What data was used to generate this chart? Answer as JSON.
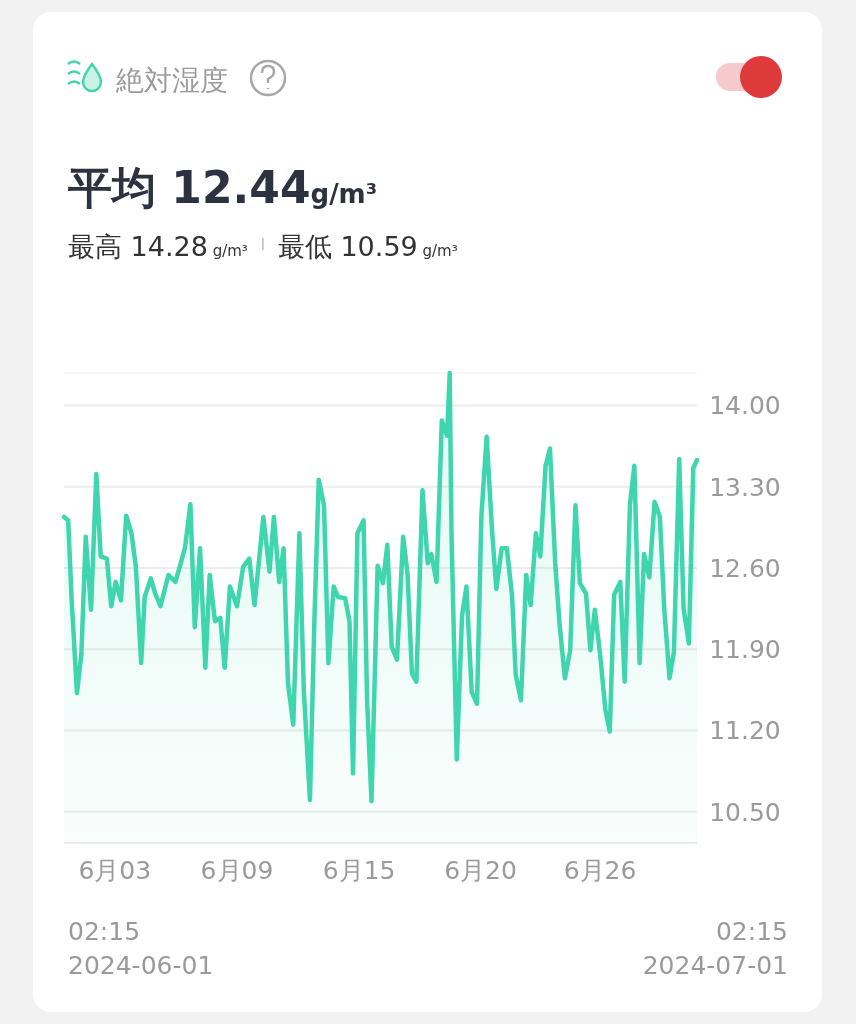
{
  "chart_data": {
    "type": "area",
    "title": "絶対湿度",
    "subtitle": "平均 12.44g/m³",
    "annotations": [
      "最高 14.28 g/m³",
      "最低 10.59 g/m³",
      "02:15\n2024-06-01",
      "02:15\n2024-07-01"
    ],
    "x": [
      "2024-06-01T02:15",
      "2024-06-01T07:00",
      "2024-06-01T11:00",
      "2024-06-01T17:00",
      "2024-06-01T22:00",
      "2024-06-02T03:00",
      "2024-06-02T09:00",
      "2024-06-02T15:00",
      "2024-06-02T20:00",
      "2024-06-03T03:00",
      "2024-06-03T08:00",
      "2024-06-03T13:00",
      "2024-06-03T19:00",
      "2024-06-04T01:00",
      "2024-06-04T07:00",
      "2024-06-04T12:00",
      "2024-06-04T18:00",
      "2024-06-04T22:00",
      "2024-06-05T05:00",
      "2024-06-05T10:00",
      "2024-06-05T16:00",
      "2024-06-06T01:00",
      "2024-06-06T09:00",
      "2024-06-06T15:00",
      "2024-06-06T20:00",
      "2024-06-07T02:00",
      "2024-06-07T07:00",
      "2024-06-07T13:00",
      "2024-06-07T19:00",
      "2024-06-08T00:00",
      "2024-06-08T06:00",
      "2024-06-08T12:00",
      "2024-06-08T17:00",
      "2024-06-08T23:00",
      "2024-06-09T07:00",
      "2024-06-09T14:00",
      "2024-06-09T21:00",
      "2024-06-10T03:00",
      "2024-06-10T13:00",
      "2024-06-10T20:00",
      "2024-06-11T01:00",
      "2024-06-11T07:00",
      "2024-06-11T12:00",
      "2024-06-11T17:00",
      "2024-06-11T23:00",
      "2024-06-12T06:00",
      "2024-06-12T11:00",
      "2024-06-12T18:00",
      "2024-06-12T23:00",
      "2024-06-13T04:00",
      "2024-06-13T10:00",
      "2024-06-13T15:00",
      "2024-06-13T21:00",
      "2024-06-14T02:00",
      "2024-06-14T10:00",
      "2024-06-14T15:00",
      "2024-06-14T19:00",
      "2024-06-15T00:00",
      "2024-06-15T07:00",
      "2024-06-15T11:00",
      "2024-06-15T16:00",
      "2024-06-15T23:00",
      "2024-06-16T05:00",
      "2024-06-16T10:00",
      "2024-06-16T15:00",
      "2024-06-16T21:00",
      "2024-06-17T04:00",
      "2024-06-17T09:00",
      "2024-06-17T14:00",
      "2024-06-17T19:00",
      "2024-06-18T02:00",
      "2024-06-18T08:00",
      "2024-06-18T12:00",
      "2024-06-18T18:00",
      "2024-06-19T00:00",
      "2024-06-19T06:00",
      "2024-06-19T09:00",
      "2024-06-19T11:00",
      "2024-06-19T17:00",
      "2024-06-19T23:00",
      "2024-06-20T04:00",
      "2024-06-20T10:00",
      "2024-06-20T16:00",
      "2024-06-20T21:00",
      "2024-06-21T03:00",
      "2024-06-21T09:00",
      "2024-06-21T14:00",
      "2024-06-21T20:00",
      "2024-06-22T02:00",
      "2024-06-22T08:00",
      "2024-06-22T12:00",
      "2024-06-22T18:00",
      "2024-06-23T00:00",
      "2024-06-23T05:00",
      "2024-06-23T11:00",
      "2024-06-23T16:00",
      "2024-06-23T22:00",
      "2024-06-24T03:00",
      "2024-06-24T09:00",
      "2024-06-24T14:00",
      "2024-06-24T20:00",
      "2024-06-25T02:00",
      "2024-06-25T08:00",
      "2024-06-25T13:00",
      "2024-06-25T20:00",
      "2024-06-26T01:00",
      "2024-06-26T06:00",
      "2024-06-26T12:00",
      "2024-06-26T18:00",
      "2024-06-26T23:00",
      "2024-06-27T04:00",
      "2024-06-27T11:00",
      "2024-06-27T16:00",
      "2024-06-27T22:00",
      "2024-06-28T03:00",
      "2024-06-28T09:00",
      "2024-06-28T14:00",
      "2024-06-28T20:00",
      "2024-06-29T02:00",
      "2024-06-29T08:00",
      "2024-06-29T13:00",
      "2024-06-29T19:00",
      "2024-06-30T00:00",
      "2024-06-30T06:00",
      "2024-06-30T11:00",
      "2024-06-30T17:00",
      "2024-06-30T22:00",
      "2024-07-01T02:15"
    ],
    "series": [
      {
        "color": "#3fd6ae",
        "values": [
          13.04,
          13.01,
          12.32,
          11.52,
          11.86,
          12.87,
          12.24,
          13.41,
          12.7,
          12.68,
          12.27,
          12.48,
          12.32,
          13.05,
          12.9,
          12.61,
          11.78,
          12.35,
          12.51,
          12.38,
          12.27,
          12.54,
          12.48,
          12.64,
          12.78,
          13.15,
          12.09,
          12.77,
          11.74,
          12.54,
          12.14,
          12.17,
          11.74,
          12.44,
          12.27,
          12.61,
          12.68,
          12.28,
          13.04,
          12.57,
          13.04,
          12.48,
          12.77,
          11.61,
          11.25,
          12.9,
          11.55,
          10.6,
          12.14,
          13.36,
          13.14,
          11.78,
          12.44,
          12.35,
          12.34,
          12.14,
          10.83,
          12.9,
          13.01,
          11.46,
          10.59,
          12.62,
          12.47,
          12.8,
          11.92,
          11.81,
          12.87,
          12.55,
          11.69,
          11.62,
          13.27,
          12.64,
          12.72,
          12.48,
          13.87,
          13.74,
          14.28,
          12.9,
          10.95,
          12.19,
          12.44,
          11.53,
          11.43,
          13.05,
          13.73,
          12.94,
          12.42,
          12.77,
          12.77,
          12.35,
          11.68,
          11.46,
          12.54,
          12.28,
          12.9,
          12.7,
          13.48,
          13.63,
          12.64,
          12.11,
          11.65,
          11.89,
          13.14,
          12.47,
          12.38,
          11.89,
          12.24,
          11.86,
          11.38,
          11.19,
          12.37,
          12.48,
          11.62,
          13.15,
          13.48,
          11.78,
          12.72,
          12.52,
          13.17,
          13.04,
          12.25,
          11.65,
          11.88,
          13.54,
          12.25,
          11.95,
          13.46,
          13.53
        ]
      }
    ],
    "xlim": [
      "2024-06-01T02:15",
      "2024-07-01T02:15"
    ],
    "xticks": [
      {
        "value": "2024-06-03T12:00",
        "label": "6月03"
      },
      {
        "value": "2024-06-09T07:00",
        "label": "6月09"
      },
      {
        "value": "2024-06-15T02:00",
        "label": "6月15"
      },
      {
        "value": "2024-06-20T20:00",
        "label": "6月20"
      },
      {
        "value": "2024-06-26T12:00",
        "label": "6月26"
      }
    ],
    "ylim": [
      10.23,
      14.28
    ],
    "yticks": [
      {
        "value": 10.5,
        "label": "10.50"
      },
      {
        "value": 11.2,
        "label": "11.20"
      },
      {
        "value": 11.9,
        "label": "11.90"
      },
      {
        "value": 12.6,
        "label": "12.60"
      },
      {
        "value": 13.3,
        "label": "13.30"
      },
      {
        "value": 14,
        "label": "14.00"
      }
    ],
    "grid": "y"
  }
}
